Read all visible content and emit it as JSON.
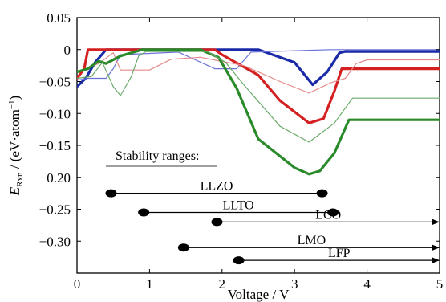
{
  "chart_data": {
    "type": "line",
    "xlabel": "Voltage / V",
    "ylabel_main": "E",
    "ylabel_sub": "Rxn",
    "ylabel_rest": " / (eV·atom",
    "ylabel_sup": "−1",
    "ylabel_end": ")",
    "xlim": [
      0,
      5
    ],
    "ylim": [
      -0.35,
      0.05
    ],
    "x_ticks": [
      0,
      1,
      2,
      3,
      4,
      5
    ],
    "y_ticks": [
      0.05,
      0,
      -0.05,
      -0.1,
      -0.15,
      -0.2,
      -0.25,
      -0.3
    ],
    "y_tick_labels": [
      "0.05",
      "0",
      "−0.05",
      "−0.10",
      "−0.15",
      "−0.20",
      "−0.25",
      "−0.30"
    ],
    "series": [
      {
        "color": "#1a2aa8",
        "width": 3.2,
        "points": [
          [
            0,
            -0.058
          ],
          [
            0.12,
            -0.045
          ],
          [
            0.25,
            -0.02
          ],
          [
            0.4,
            0
          ],
          [
            1.7,
            0
          ],
          [
            2.5,
            0
          ],
          [
            3.0,
            -0.02
          ],
          [
            3.25,
            -0.055
          ],
          [
            3.45,
            -0.035
          ],
          [
            3.62,
            -0.005
          ],
          [
            3.7,
            -0.003
          ],
          [
            5,
            -0.003
          ]
        ]
      },
      {
        "color": "#6a72d6",
        "width": 1.2,
        "points": [
          [
            0,
            -0.048
          ],
          [
            0.15,
            -0.045
          ],
          [
            0.4,
            -0.045
          ],
          [
            0.5,
            -0.03
          ],
          [
            0.6,
            -0.008
          ],
          [
            1.4,
            -0.004
          ],
          [
            1.9,
            -0.03
          ],
          [
            2.2,
            -0.03
          ],
          [
            2.4,
            -0.004
          ],
          [
            3.5,
            0
          ],
          [
            3.7,
            0
          ],
          [
            5,
            0
          ]
        ]
      },
      {
        "color": "#d42020",
        "width": 3.2,
        "points": [
          [
            0,
            -0.045
          ],
          [
            0.1,
            -0.03
          ],
          [
            0.15,
            0
          ],
          [
            1.9,
            0
          ],
          [
            2.0,
            -0.008
          ],
          [
            2.5,
            -0.04
          ],
          [
            2.8,
            -0.08
          ],
          [
            3.2,
            -0.115
          ],
          [
            3.4,
            -0.108
          ],
          [
            3.55,
            -0.065
          ],
          [
            3.65,
            -0.03
          ],
          [
            5,
            -0.03
          ]
        ]
      },
      {
        "color": "#e58a8a",
        "width": 1.2,
        "points": [
          [
            0,
            -0.035
          ],
          [
            0.3,
            -0.022
          ],
          [
            0.5,
            -0.005
          ],
          [
            0.6,
            -0.032
          ],
          [
            1.0,
            -0.032
          ],
          [
            1.3,
            -0.015
          ],
          [
            1.7,
            -0.012
          ],
          [
            2.3,
            -0.025
          ],
          [
            2.8,
            -0.05
          ],
          [
            3.2,
            -0.068
          ],
          [
            3.5,
            -0.052
          ],
          [
            3.7,
            -0.045
          ],
          [
            3.85,
            -0.022
          ],
          [
            4,
            -0.016
          ],
          [
            5,
            -0.016
          ]
        ]
      },
      {
        "color": "#2a8a2a",
        "width": 3.2,
        "points": [
          [
            0,
            -0.035
          ],
          [
            0.15,
            -0.03
          ],
          [
            0.3,
            -0.018
          ],
          [
            0.4,
            -0.022
          ],
          [
            0.6,
            -0.01
          ],
          [
            0.9,
            0
          ],
          [
            1.7,
            0
          ],
          [
            1.95,
            -0.012
          ],
          [
            2.2,
            -0.06
          ],
          [
            2.5,
            -0.14
          ],
          [
            3.0,
            -0.185
          ],
          [
            3.2,
            -0.195
          ],
          [
            3.35,
            -0.19
          ],
          [
            3.55,
            -0.162
          ],
          [
            3.75,
            -0.11
          ],
          [
            5,
            -0.11
          ]
        ]
      },
      {
        "color": "#6aaa6a",
        "width": 1.2,
        "points": [
          [
            0,
            -0.045
          ],
          [
            0.2,
            -0.042
          ],
          [
            0.35,
            -0.02
          ],
          [
            0.5,
            -0.058
          ],
          [
            0.6,
            -0.072
          ],
          [
            0.75,
            -0.042
          ],
          [
            0.85,
            -0.01
          ],
          [
            0.95,
            -0.003
          ],
          [
            1.8,
            -0.003
          ],
          [
            2.05,
            -0.02
          ],
          [
            2.3,
            -0.055
          ],
          [
            2.8,
            -0.12
          ],
          [
            3.2,
            -0.145
          ],
          [
            3.55,
            -0.115
          ],
          [
            3.8,
            -0.076
          ],
          [
            5,
            -0.076
          ]
        ]
      }
    ],
    "annotation_title": "Stability ranges:",
    "ranges": [
      {
        "label": "LLZO",
        "start": 0.47,
        "end": 3.38,
        "y": -0.225,
        "end_marker": "dot"
      },
      {
        "label": "LLTO",
        "start": 0.92,
        "end": 3.53,
        "y": -0.255,
        "end_marker": "dot"
      },
      {
        "label": "LCO",
        "start": 1.93,
        "end": 5.0,
        "y": -0.27,
        "end_marker": "arrow"
      },
      {
        "label": "LMO",
        "start": 1.47,
        "end": 5.0,
        "y": -0.31,
        "end_marker": "arrow"
      },
      {
        "label": "LFP",
        "start": 2.23,
        "end": 5.0,
        "y": -0.33,
        "end_marker": "arrow"
      }
    ]
  }
}
